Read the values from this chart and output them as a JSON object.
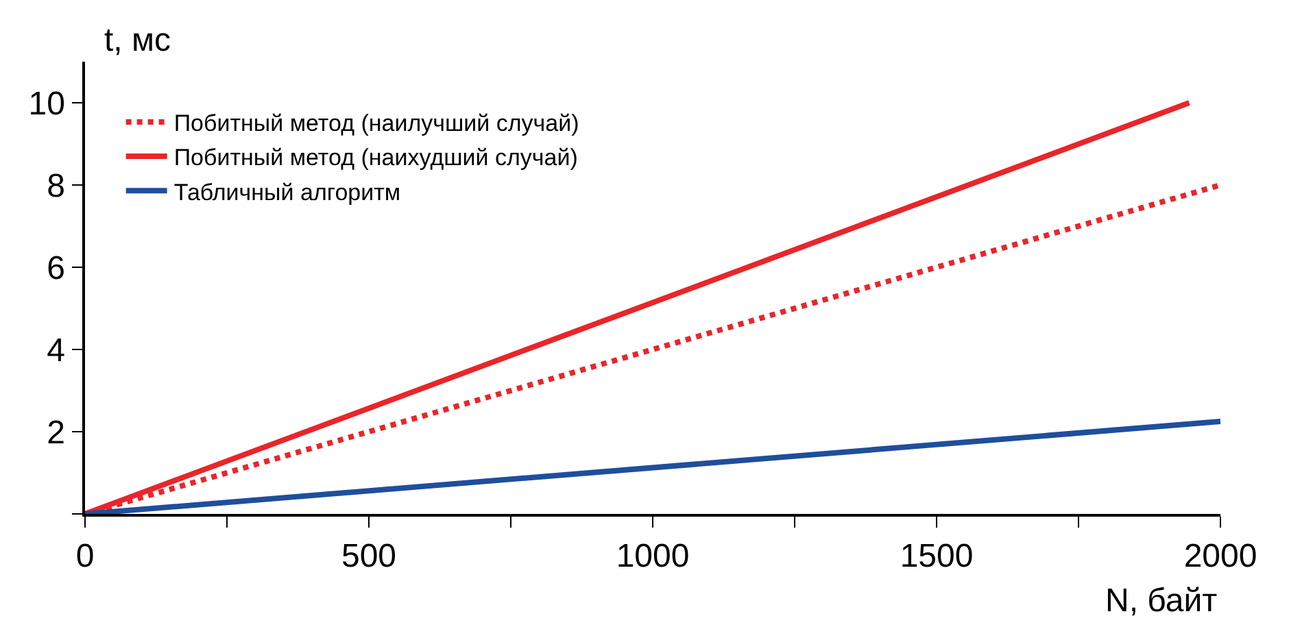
{
  "chart_data": {
    "type": "line",
    "xlabel": "N, байт",
    "ylabel": "t, мс",
    "xlim": [
      0,
      2000
    ],
    "ylim": [
      0,
      11
    ],
    "xticks": [
      0,
      {
        "value": 250,
        "label": null
      },
      500,
      {
        "value": 750,
        "label": null
      },
      1000,
      {
        "value": 1250,
        "label": null
      },
      1500,
      {
        "value": 1750,
        "label": null
      },
      2000
    ],
    "yticks": [
      {
        "value": 0,
        "label": null
      },
      2,
      4,
      6,
      8,
      10
    ],
    "legend": "top left",
    "marker": "none",
    "series": [
      {
        "name": "Побитный метод (наилучший случай)",
        "color": "#e8262b",
        "line_style": "dotted",
        "x": [
          0,
          2000
        ],
        "values": [
          0,
          8
        ]
      },
      {
        "name": "Побитный метод (наихудший случай)",
        "color": "#e8262b",
        "line_style": "solid",
        "x": [
          0,
          1945
        ],
        "values": [
          0,
          10
        ]
      },
      {
        "name": "Табличный алгоритм",
        "color": "#1f4e9c",
        "line_style": "solid",
        "x": [
          0,
          2000
        ],
        "values": [
          0,
          2.25
        ]
      }
    ]
  }
}
